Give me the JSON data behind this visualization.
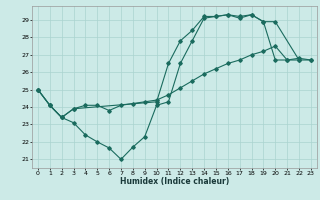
{
  "title": "",
  "xlabel": "Humidex (Indice chaleur)",
  "bg_color": "#cceae7",
  "grid_color": "#aad4d0",
  "line_color": "#1a6b5e",
  "xlim": [
    -0.5,
    23.5
  ],
  "ylim": [
    20.5,
    29.8
  ],
  "yticks": [
    21,
    22,
    23,
    24,
    25,
    26,
    27,
    28,
    29
  ],
  "xticks": [
    0,
    1,
    2,
    3,
    4,
    5,
    6,
    7,
    8,
    9,
    10,
    11,
    12,
    13,
    14,
    15,
    16,
    17,
    18,
    19,
    20,
    21,
    22,
    23
  ],
  "line_v_x": [
    0,
    1,
    2,
    3,
    4,
    5,
    6,
    7,
    8,
    9,
    10,
    11,
    12,
    13,
    14,
    15,
    16,
    17,
    18,
    19,
    20,
    21,
    22
  ],
  "line_v_y": [
    25.0,
    24.1,
    23.4,
    23.1,
    22.4,
    22.0,
    21.65,
    21.0,
    21.7,
    22.3,
    24.1,
    24.3,
    26.5,
    27.8,
    29.1,
    29.2,
    29.3,
    29.1,
    29.3,
    28.9,
    26.7,
    26.7,
    26.7
  ],
  "line_u_x": [
    0,
    1,
    2,
    3,
    10,
    11,
    12,
    13,
    14,
    15,
    16,
    17,
    18,
    19,
    20,
    22,
    23
  ],
  "line_u_y": [
    25.0,
    24.1,
    23.4,
    23.9,
    24.3,
    26.5,
    27.8,
    28.4,
    29.2,
    29.2,
    29.3,
    29.2,
    29.3,
    28.9,
    28.9,
    26.7,
    26.7
  ],
  "line_s_x": [
    0,
    1,
    2,
    3,
    4,
    5,
    6,
    7,
    8,
    9,
    10,
    11,
    12,
    13,
    14,
    15,
    16,
    17,
    18,
    19,
    20,
    21,
    22,
    23
  ],
  "line_s_y": [
    25.0,
    24.1,
    23.4,
    23.9,
    24.1,
    24.1,
    23.8,
    24.1,
    24.2,
    24.3,
    24.4,
    24.7,
    25.1,
    25.5,
    25.9,
    26.2,
    26.5,
    26.7,
    27.0,
    27.2,
    27.5,
    26.7,
    26.8,
    26.7
  ]
}
